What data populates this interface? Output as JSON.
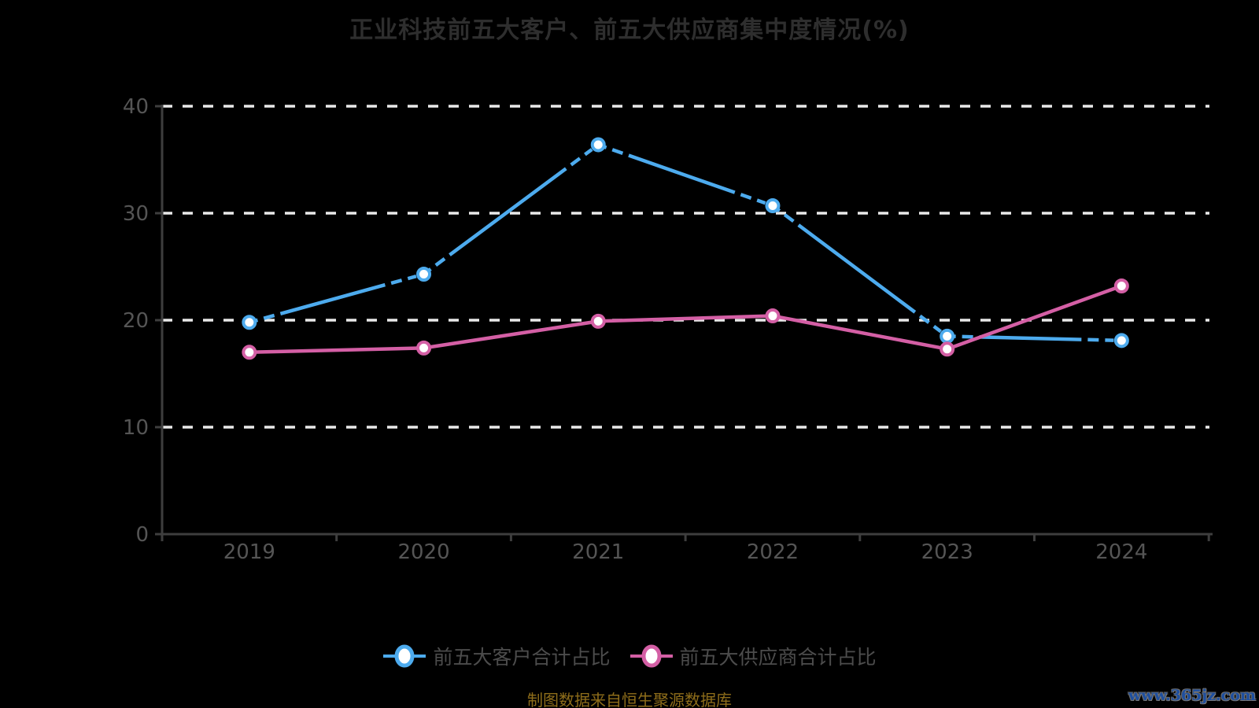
{
  "title": "正业科技前五大客户、前五大供应商集中度情况(%)",
  "footer": {
    "source_note": "制图数据来自恒生聚源数据库",
    "watermark": "www.365jz.com"
  },
  "colors": {
    "background": "#000000",
    "customer_line": "#4DABEE",
    "supplier_line": "#D45FA5",
    "marker_fill": "#FFFFFF",
    "grid_line": "#E9E9E9",
    "axis_line": "#3E3E3E",
    "axis_label": "#555555",
    "title_text": "#2E2E2E",
    "legend_text": "#4C4C4C",
    "source_text": "#8E6D1A",
    "watermark_text": "#1E4F9F"
  },
  "chart_data": {
    "type": "line",
    "title": "正业科技前五大客户、前五大供应商集中度情况(%)",
    "categories": [
      "2019",
      "2020",
      "2021",
      "2022",
      "2023",
      "2024"
    ],
    "series": [
      {
        "name": "前五大客户合计占比",
        "color_key": "customer_line",
        "values": [
          19.8,
          24.3,
          36.4,
          30.7,
          18.5,
          18.1
        ]
      },
      {
        "name": "前五大供应商合计占比",
        "color_key": "supplier_line",
        "values": [
          17.0,
          17.4,
          19.9,
          20.4,
          17.3,
          23.2
        ]
      }
    ],
    "ylim": [
      0,
      40
    ],
    "yticks": [
      0,
      10,
      20,
      30,
      40
    ],
    "grid": "horizontal dashed white lines",
    "legend_position": "bottom",
    "marker": "white-filled circle with colored ring"
  }
}
